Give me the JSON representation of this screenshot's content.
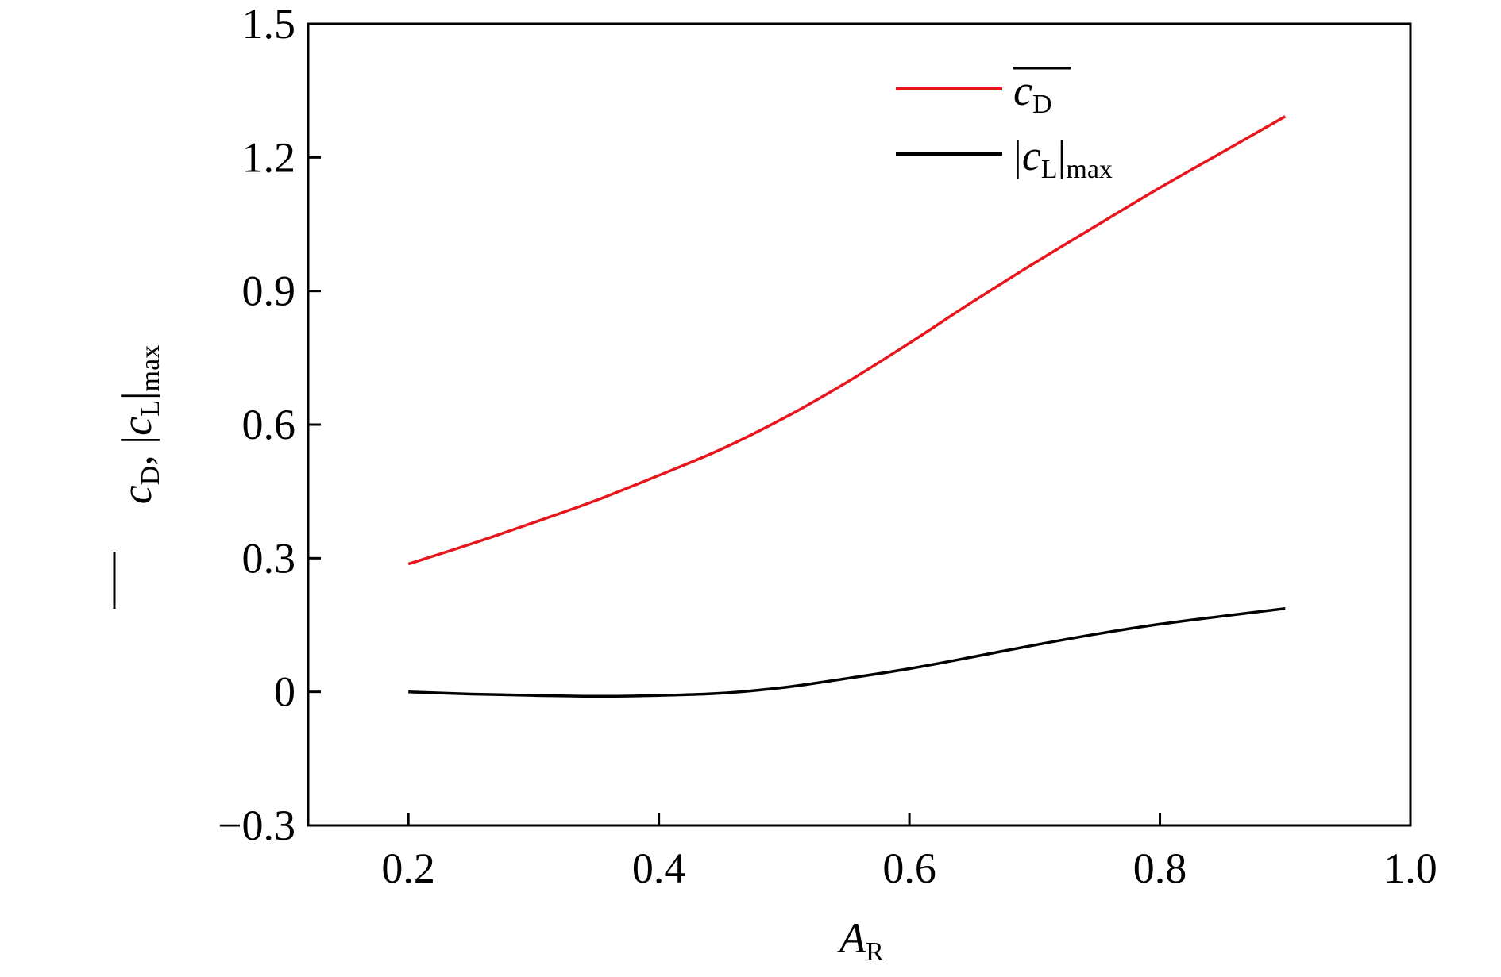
{
  "chart_data": {
    "type": "line",
    "x": [
      0.2,
      0.25,
      0.3,
      0.35,
      0.4,
      0.45,
      0.5,
      0.55,
      0.6,
      0.65,
      0.7,
      0.75,
      0.8,
      0.85,
      0.9
    ],
    "series": [
      {
        "name": "c_D (mean)",
        "color": "#e8161c",
        "values": [
          0.287,
          0.332,
          0.38,
          0.43,
          0.486,
          0.545,
          0.615,
          0.695,
          0.783,
          0.875,
          0.963,
          1.048,
          1.132,
          1.212,
          1.292
        ]
      },
      {
        "name": "|c_L|max",
        "color": "#000000",
        "values": [
          0.0,
          -0.005,
          -0.008,
          -0.01,
          -0.008,
          -0.003,
          0.01,
          0.03,
          0.052,
          0.078,
          0.105,
          0.13,
          0.152,
          0.17,
          0.187
        ]
      }
    ],
    "xlim": [
      0.12,
      1.0
    ],
    "ylim": [
      -0.3,
      1.5
    ],
    "xticks": [
      "0.2",
      "0.4",
      "0.6",
      "0.8",
      "1.0"
    ],
    "xtick_values": [
      0.2,
      0.4,
      0.6,
      0.8,
      1.0
    ],
    "yticks": [
      "−0.3",
      "0",
      "0.3",
      "0.6",
      "0.9",
      "1.2",
      "1.5"
    ],
    "ytick_values": [
      -0.3,
      0,
      0.3,
      0.6,
      0.9,
      1.2,
      1.5
    ],
    "xlabel": {
      "main": "A",
      "sub": "R"
    },
    "ylabel": {
      "cd_main": "c",
      "cd_sub": "D",
      "separator": ",",
      "cl_main": "c",
      "cl_sub": "L",
      "cl_suffix": "max"
    },
    "legend": {
      "placement": "top-right",
      "entries": [
        {
          "main": "c",
          "sub": "D",
          "suffix": "",
          "overline": true,
          "abs": false
        },
        {
          "main": "c",
          "sub": "L",
          "suffix": "max",
          "overline": false,
          "abs": true
        }
      ]
    },
    "grid": false
  }
}
